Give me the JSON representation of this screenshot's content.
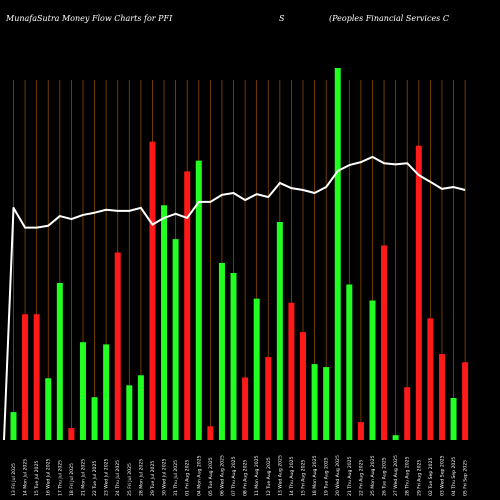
{
  "header": {
    "left": "MunafaSutra  Money Flow  Charts for PFI",
    "mid": "S",
    "right": "(Peoples Financial Services C"
  },
  "colors": {
    "up": "#22ff22",
    "down": "#ff1a1a",
    "line": "#ffffff",
    "grid": "#8a4a00",
    "background": "#000000"
  },
  "chart_data": {
    "type": "bar",
    "ylim": [
      0,
      100
    ],
    "categories": [
      "13 Fri Jul 2025",
      "14 Mon Jul 2025",
      "15 Tue Jul 2025",
      "16 Wed Jul 2025",
      "17 Thu Jul 2025",
      "18 Fri Jul 2025",
      "21 Mon Jul 2025",
      "22 Tue Jul 2025",
      "23 Wed Jul 2025",
      "24 Thu Jul 2025",
      "25 Fri Jul 2025",
      "28 Mon Jul 2025",
      "29 Tue Jul 2025",
      "30 Wed Jul 2025",
      "31 Thu Jul 2025",
      "01 Fri Aug 2025",
      "04 Mon Aug 2025",
      "05 Tue Aug 2025",
      "06 Wed Aug 2025",
      "07 Thu Aug 2025",
      "08 Fri Aug 2025",
      "11 Mon Aug 2025",
      "12 Tue Aug 2025",
      "13 Wed Aug 2025",
      "14 Thu Aug 2025",
      "15 Fri Aug 2025",
      "18 Mon Aug 2025",
      "19 Tue Aug 2025",
      "20 Wed Aug 2025",
      "21 Thu Aug 2025",
      "22 Fri Aug 2025",
      "25 Mon Aug 2025",
      "26 Tue Aug 2025",
      "27 Wed Aug 2025",
      "28 Thu Aug 2025",
      "29 Fri Aug 2025",
      "02 Tue Sep 2025",
      "03 Wed Sep 2025",
      "04 Thu Sep 2025",
      "05 Fri Sep 2025"
    ],
    "bars": [
      {
        "value": 7.5,
        "dir": "up"
      },
      {
        "value": 33.8,
        "dir": "down"
      },
      {
        "value": 33.8,
        "dir": "down"
      },
      {
        "value": 16.6,
        "dir": "up"
      },
      {
        "value": 42.2,
        "dir": "up"
      },
      {
        "value": 3.2,
        "dir": "down"
      },
      {
        "value": 26.3,
        "dir": "up"
      },
      {
        "value": 11.5,
        "dir": "up"
      },
      {
        "value": 25.7,
        "dir": "up"
      },
      {
        "value": 50.4,
        "dir": "down"
      },
      {
        "value": 14.7,
        "dir": "up"
      },
      {
        "value": 17.4,
        "dir": "up"
      },
      {
        "value": 80.2,
        "dir": "down"
      },
      {
        "value": 63.1,
        "dir": "up"
      },
      {
        "value": 54.0,
        "dir": "up"
      },
      {
        "value": 72.2,
        "dir": "down"
      },
      {
        "value": 75.1,
        "dir": "up"
      },
      {
        "value": 3.7,
        "dir": "down"
      },
      {
        "value": 47.6,
        "dir": "up"
      },
      {
        "value": 44.9,
        "dir": "up"
      },
      {
        "value": 16.8,
        "dir": "down"
      },
      {
        "value": 38.0,
        "dir": "up"
      },
      {
        "value": 22.3,
        "dir": "down"
      },
      {
        "value": 58.6,
        "dir": "up"
      },
      {
        "value": 36.9,
        "dir": "down"
      },
      {
        "value": 29.0,
        "dir": "down"
      },
      {
        "value": 20.4,
        "dir": "up"
      },
      {
        "value": 19.6,
        "dir": "up"
      },
      {
        "value": 100.0,
        "dir": "up"
      },
      {
        "value": 41.8,
        "dir": "up"
      },
      {
        "value": 4.8,
        "dir": "down"
      },
      {
        "value": 37.5,
        "dir": "up"
      },
      {
        "value": 52.3,
        "dir": "down"
      },
      {
        "value": 1.3,
        "dir": "up"
      },
      {
        "value": 14.2,
        "dir": "down"
      },
      {
        "value": 79.1,
        "dir": "down"
      },
      {
        "value": 32.7,
        "dir": "down"
      },
      {
        "value": 23.1,
        "dir": "down"
      },
      {
        "value": 11.3,
        "dir": "up"
      },
      {
        "value": 20.9,
        "dir": "down"
      }
    ],
    "line": [
      62.4,
      57.1,
      57.1,
      57.6,
      60.2,
      59.4,
      60.5,
      61.1,
      61.9,
      61.6,
      61.6,
      62.4,
      57.9,
      59.7,
      60.8,
      59.7,
      64.0,
      64.0,
      65.9,
      66.4,
      64.5,
      66.1,
      65.3,
      69.1,
      67.7,
      67.2,
      66.4,
      68.0,
      72.3,
      73.9,
      74.7,
      76.1,
      74.4,
      74.1,
      74.4,
      71.2,
      69.4,
      67.5,
      68.0,
      67.2
    ]
  }
}
